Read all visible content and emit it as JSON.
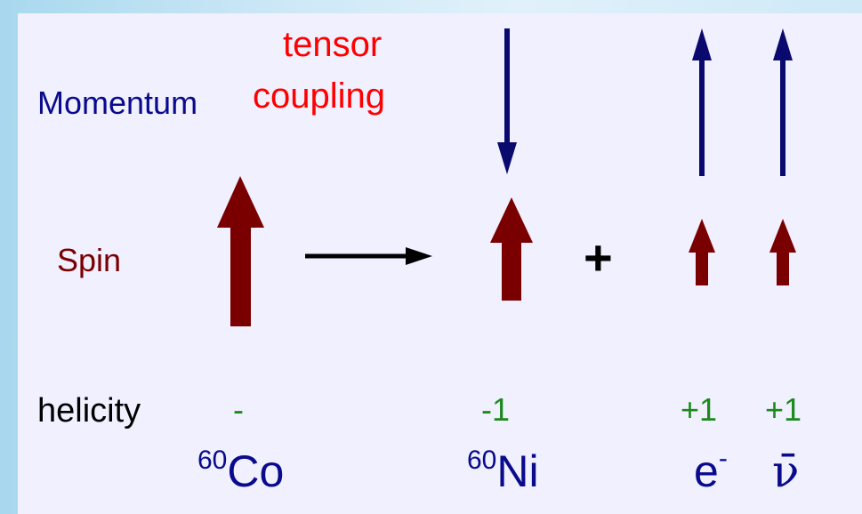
{
  "labels": {
    "tensor": "tensor",
    "coupling": "coupling",
    "momentum": "Momentum",
    "spin": "Spin",
    "helicity": "helicity",
    "plus": "+"
  },
  "helicity_values": {
    "co": "-",
    "ni": "-1",
    "electron": "+1",
    "antineutrino": "+1"
  },
  "particles": {
    "co_mass": "60",
    "co_symbol": "Co",
    "ni_mass": "60",
    "ni_symbol": "Ni",
    "electron_symbol": "e",
    "electron_charge": "-",
    "antineutrino_symbol": "ν̄"
  },
  "colors": {
    "momentum_arrow": "#0a0a6e",
    "spin_arrow": "#7a0000",
    "helicity_text": "#1a8a1a",
    "coupling_text": "#ff0000"
  }
}
